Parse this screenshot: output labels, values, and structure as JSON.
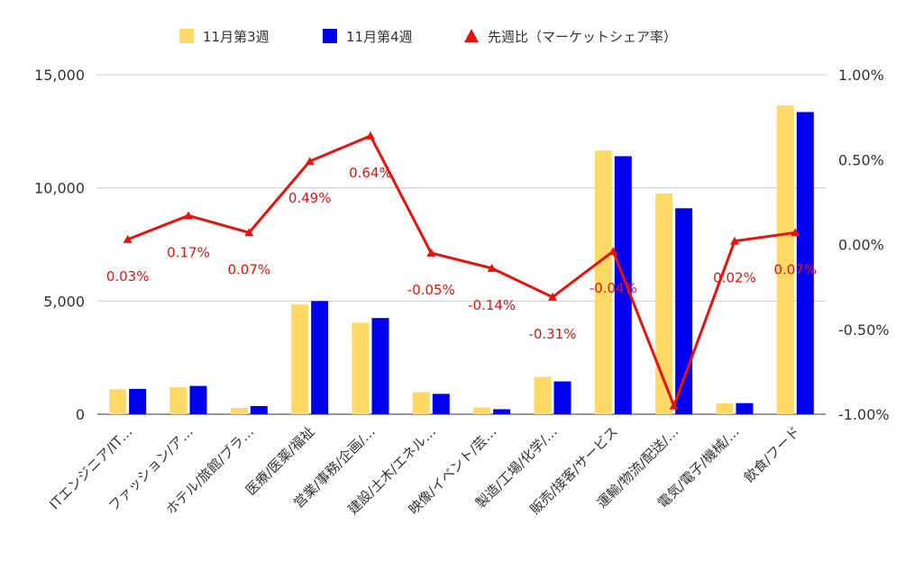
{
  "chart_data": {
    "type": "bar",
    "categories": [
      "ITエンジニア/IT…",
      "ファッション/ア…",
      "ホテル/旅館/ブラ…",
      "医療/医薬/福祉",
      "営業/事務/企画/…",
      "建設/土木/エネル…",
      "映像/イベント/芸…",
      "製造/工場/化学/…",
      "販売/接客/サービス",
      "運輸/物流/配送/…",
      "電気/電子/機械/…",
      "飲食/フード"
    ],
    "series": [
      {
        "name": "11月第3週",
        "axis": "left",
        "type": "bar",
        "color": "#ffd966",
        "values": [
          1100,
          1200,
          280,
          4850,
          4050,
          980,
          300,
          1650,
          11650,
          9750,
          480,
          13650
        ]
      },
      {
        "name": "11月第4週",
        "axis": "left",
        "type": "bar",
        "color": "#0000ee",
        "values": [
          1120,
          1250,
          360,
          5000,
          4250,
          900,
          220,
          1450,
          11400,
          9100,
          490,
          13350
        ]
      },
      {
        "name": "先週比（マーケットシェア率）",
        "axis": "right",
        "type": "line",
        "color": "#e8120c",
        "values": [
          0.03,
          0.17,
          0.07,
          0.49,
          0.64,
          -0.05,
          -0.14,
          -0.31,
          -0.04,
          -0.95,
          0.02,
          0.07
        ],
        "labels": [
          "0.03%",
          "0.17%",
          "0.07%",
          "0.49%",
          "0.64%",
          "-0.05%",
          "-0.14%",
          "-0.31%",
          "-0.04%",
          "",
          "0.02%",
          "0.07%"
        ]
      }
    ],
    "y_left": {
      "min": 0,
      "max": 15000,
      "ticks": [
        0,
        5000,
        10000,
        15000
      ],
      "tick_labels": [
        "0",
        "5,000",
        "10,000",
        "15,000"
      ]
    },
    "y_right": {
      "min": -1.0,
      "max": 1.0,
      "ticks": [
        -1.0,
        -0.5,
        0,
        0.5,
        1.0
      ],
      "tick_labels": [
        "-1.00%",
        "-0.50%",
        "0.00%",
        "0.50%",
        "1.00%"
      ]
    },
    "grid": true,
    "legend": "top-center"
  }
}
